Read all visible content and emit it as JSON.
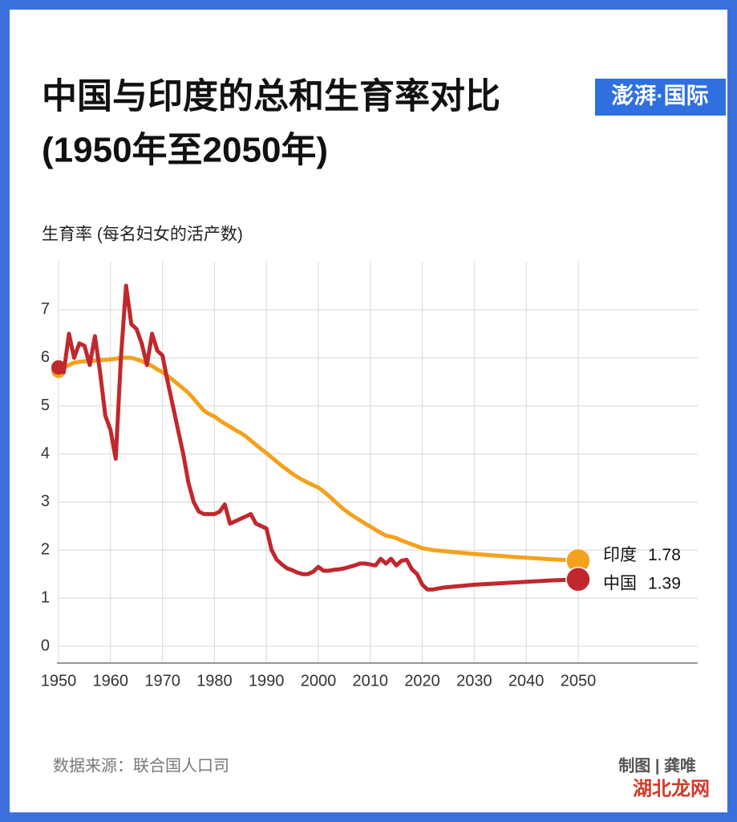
{
  "chart_data": {
    "type": "line",
    "title": "中国与印度的总和生育率对比",
    "subtitle": "(1950年至2050年)",
    "y_label": "生育率 (每名妇女的活产数)",
    "x": [
      1950,
      1951,
      1952,
      1953,
      1954,
      1955,
      1956,
      1957,
      1958,
      1959,
      1960,
      1961,
      1962,
      1963,
      1964,
      1965,
      1966,
      1967,
      1968,
      1969,
      1970,
      1971,
      1972,
      1973,
      1974,
      1975,
      1976,
      1977,
      1978,
      1979,
      1980,
      1981,
      1982,
      1983,
      1984,
      1985,
      1986,
      1987,
      1988,
      1989,
      1990,
      1991,
      1992,
      1993,
      1994,
      1995,
      1996,
      1997,
      1998,
      1999,
      2000,
      2001,
      2002,
      2003,
      2004,
      2005,
      2006,
      2007,
      2008,
      2009,
      2010,
      2011,
      2012,
      2013,
      2014,
      2015,
      2016,
      2017,
      2018,
      2019,
      2020,
      2021,
      2022,
      2023,
      2024,
      2030,
      2035,
      2040,
      2045,
      2050
    ],
    "series": [
      {
        "name": "印度",
        "color": "#f4a11d",
        "values": [
          5.73,
          5.8,
          5.85,
          5.9,
          5.92,
          5.93,
          5.93,
          5.94,
          5.95,
          5.96,
          5.97,
          5.98,
          6.0,
          6.0,
          6.0,
          5.97,
          5.93,
          5.88,
          5.83,
          5.76,
          5.7,
          5.62,
          5.54,
          5.45,
          5.36,
          5.27,
          5.15,
          5.02,
          4.9,
          4.83,
          4.78,
          4.7,
          4.63,
          4.57,
          4.5,
          4.44,
          4.37,
          4.28,
          4.19,
          4.1,
          4.02,
          3.93,
          3.84,
          3.75,
          3.67,
          3.59,
          3.52,
          3.46,
          3.4,
          3.35,
          3.3,
          3.22,
          3.13,
          3.03,
          2.93,
          2.84,
          2.76,
          2.69,
          2.62,
          2.55,
          2.49,
          2.42,
          2.36,
          2.3,
          2.28,
          2.25,
          2.2,
          2.16,
          2.12,
          2.08,
          2.04,
          2.02,
          2.0,
          1.99,
          1.98,
          1.92,
          1.88,
          1.84,
          1.81,
          1.78
        ]
      },
      {
        "name": "中国",
        "color": "#c0282d",
        "values": [
          5.8,
          5.7,
          6.5,
          6.0,
          6.3,
          6.25,
          5.85,
          6.45,
          5.7,
          4.8,
          4.5,
          3.9,
          6.0,
          7.5,
          6.7,
          6.6,
          6.3,
          5.85,
          6.5,
          6.15,
          6.05,
          5.5,
          5.0,
          4.5,
          4.0,
          3.4,
          3.0,
          2.8,
          2.75,
          2.75,
          2.75,
          2.8,
          2.95,
          2.55,
          2.6,
          2.65,
          2.7,
          2.75,
          2.55,
          2.5,
          2.45,
          2.0,
          1.8,
          1.7,
          1.62,
          1.58,
          1.53,
          1.5,
          1.5,
          1.55,
          1.65,
          1.57,
          1.57,
          1.59,
          1.6,
          1.62,
          1.65,
          1.68,
          1.72,
          1.72,
          1.7,
          1.68,
          1.82,
          1.72,
          1.82,
          1.68,
          1.78,
          1.8,
          1.6,
          1.5,
          1.28,
          1.18,
          1.18,
          1.2,
          1.22,
          1.28,
          1.31,
          1.34,
          1.37,
          1.39
        ]
      }
    ],
    "xlim": [
      1950,
      2073
    ],
    "xticks": [
      1950,
      1960,
      1970,
      1980,
      1990,
      2000,
      2010,
      2020,
      2030,
      2040,
      2050
    ],
    "ylim": [
      -0.35,
      8
    ],
    "yticks": [
      0,
      1,
      2,
      3,
      4,
      5,
      6,
      7
    ],
    "grid": true
  },
  "logo": "澎湃·国际",
  "footer": {
    "source": "数据来源：联合国人口司",
    "credit": "制图 | 龚唯"
  },
  "watermark": "湖北龙网"
}
